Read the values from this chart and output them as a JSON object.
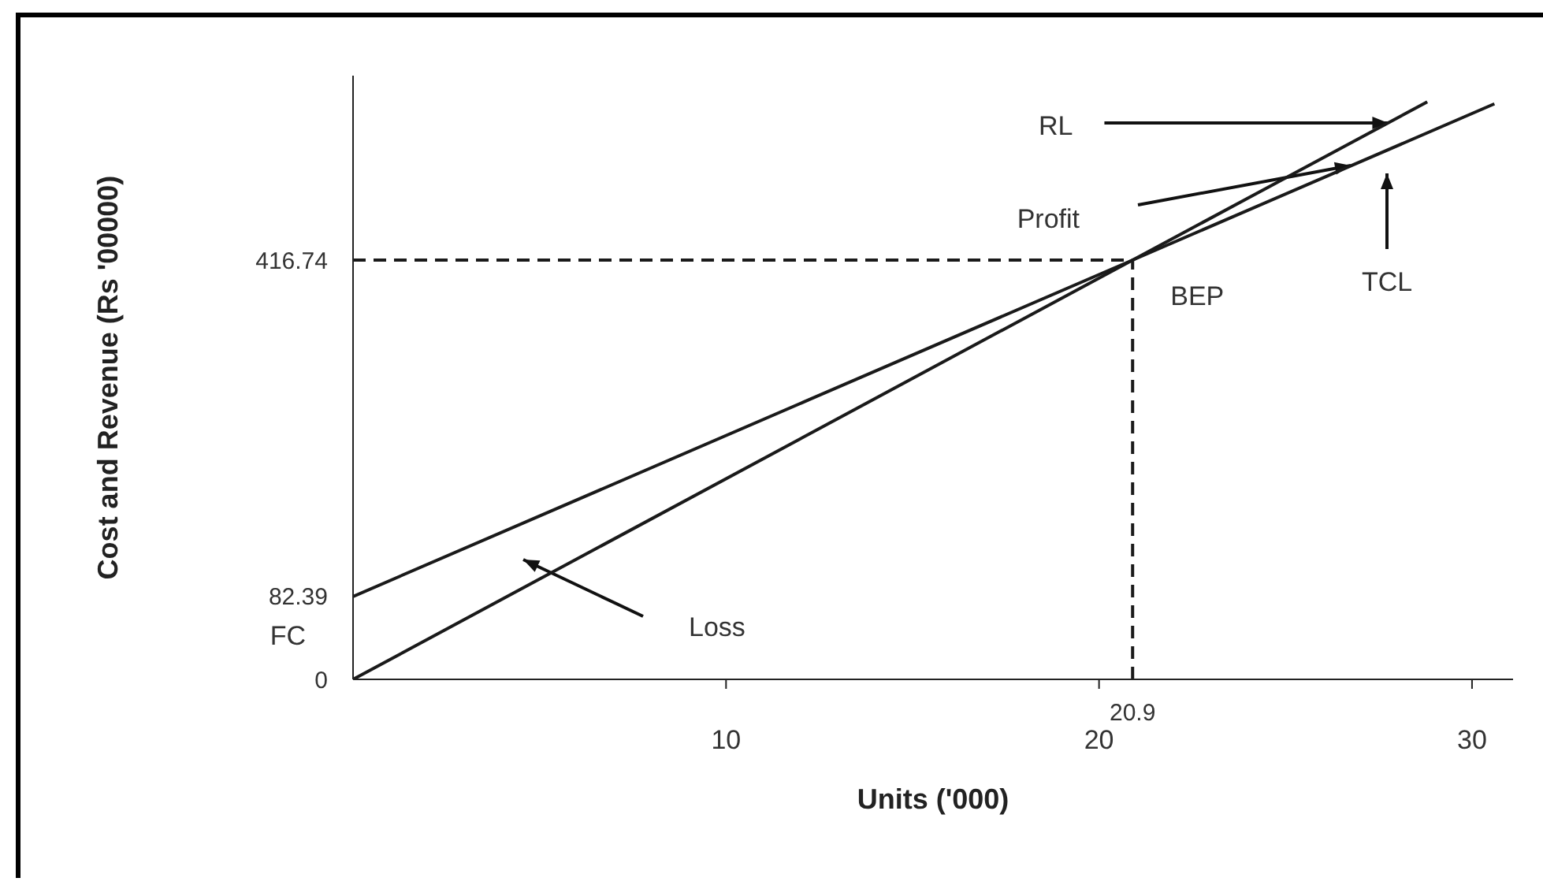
{
  "chart_data": {
    "type": "line",
    "xlabel": "Units ('000)",
    "ylabel": "Cost and Revenue (Rs '00000)",
    "xlim": [
      0,
      31.1
    ],
    "xticks": [
      10,
      20,
      30
    ],
    "ylim": [
      0,
      600
    ],
    "yticks": [
      0,
      82.39,
      416.74
    ],
    "line_style": "solid",
    "series": [
      {
        "x": [
          0,
          20.9,
          28.8
        ],
        "values": [
          0,
          416.74,
          574
        ],
        "color": "#1a1a1a"
      },
      {
        "x": [
          0,
          20.9,
          30.6
        ],
        "values": [
          82.39,
          416.74,
          572
        ],
        "color": "#1a1a1a"
      }
    ],
    "ref_lines": [
      {
        "axis": "x",
        "value": 20.9,
        "label": "20.9",
        "line_style": "dashed",
        "color": "#1a1a1a"
      },
      {
        "axis": "y",
        "value": 416.74,
        "line_style": "dashed",
        "color": "#1a1a1a"
      }
    ],
    "annotations": [
      {
        "text": "RL",
        "x": 27.75,
        "y": 553
      },
      "Profit",
      "TCL",
      "Loss",
      {
        "text": "BEP",
        "x": 20.9,
        "y": 416.74
      },
      {
        "text": "FC",
        "x": 0,
        "y": 82.39
      }
    ]
  }
}
